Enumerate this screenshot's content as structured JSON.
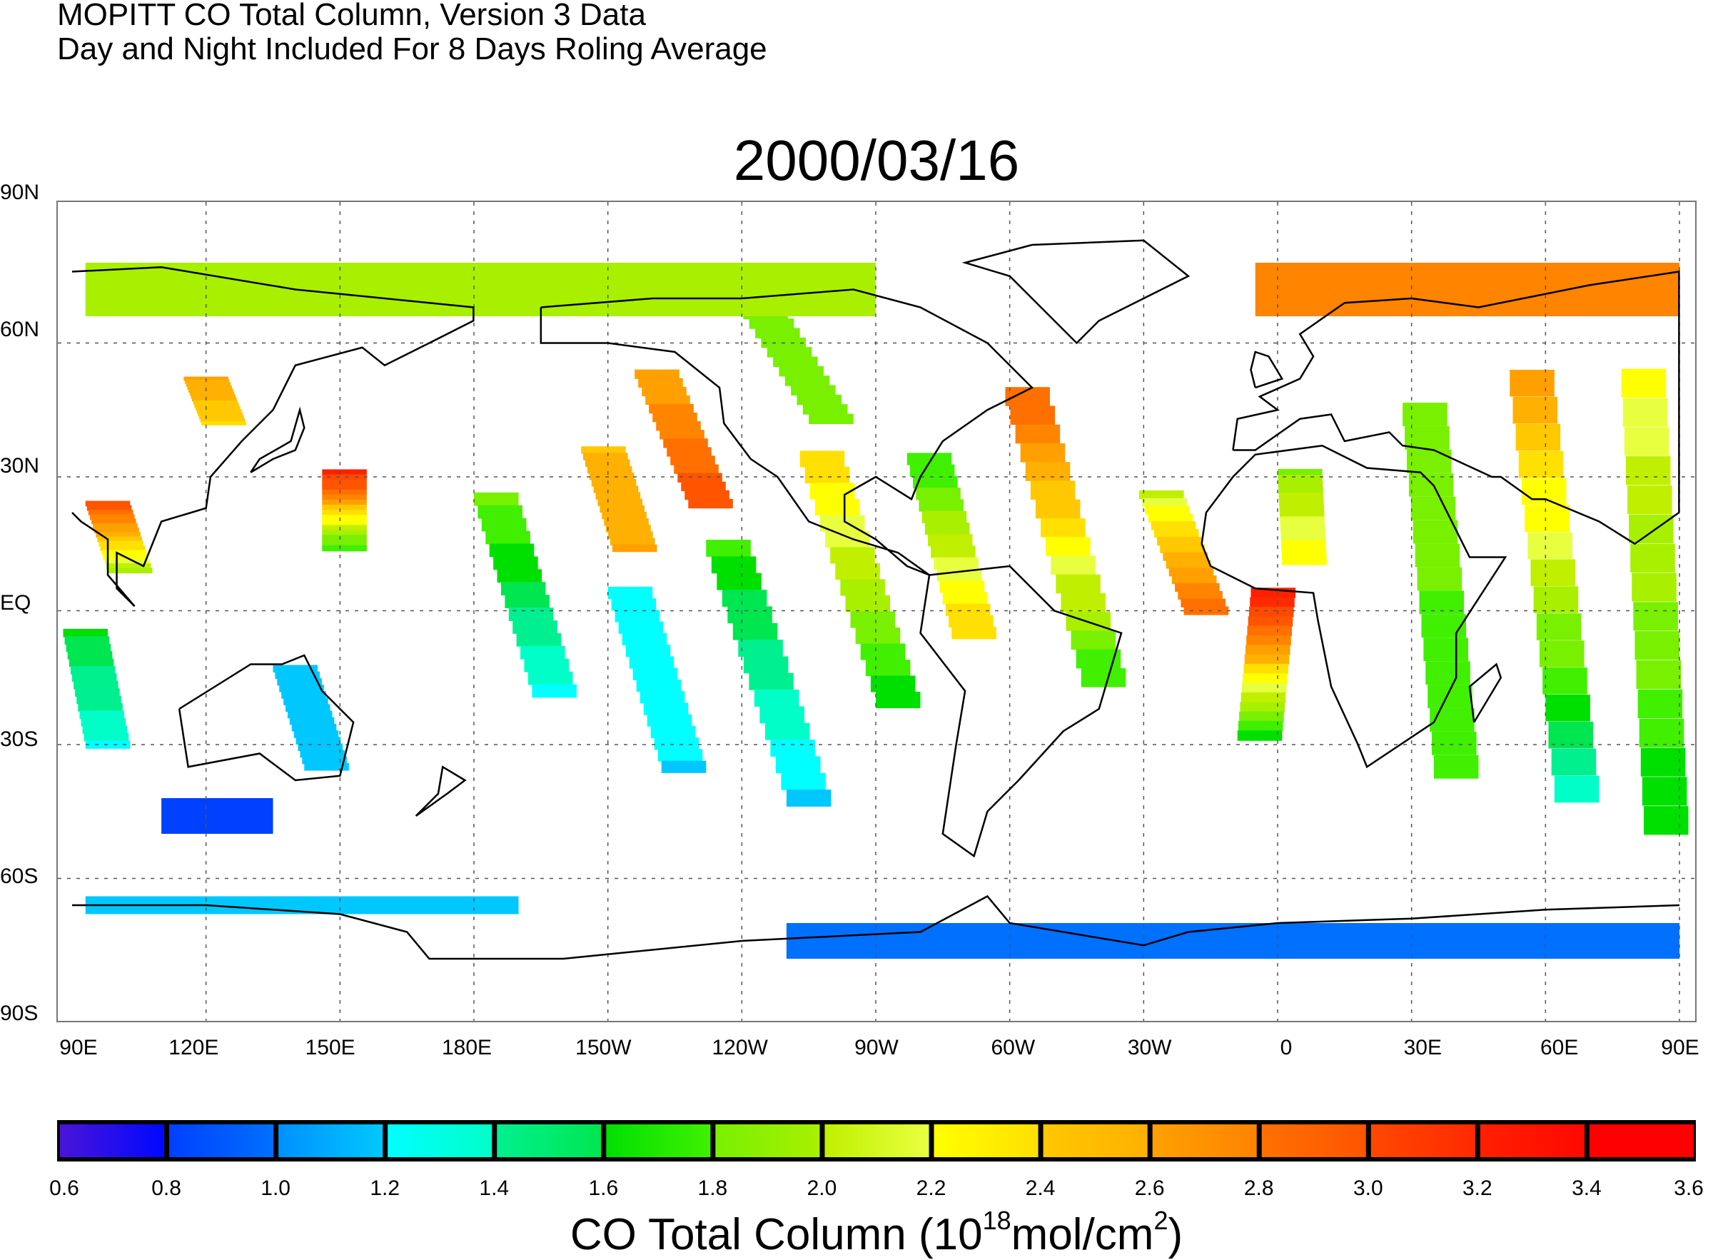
{
  "chart_data": {
    "type": "heatmap",
    "title": "MOPITT CO Total Column, Version 3 Data",
    "subtitle": "Day and Night Included For 8 Days Roling Average",
    "date": "2000/03/16",
    "lat_ticks": [
      "90N",
      "60N",
      "30N",
      "EQ",
      "30S",
      "60S",
      "90S"
    ],
    "lon_ticks": [
      "90E",
      "120E",
      "150E",
      "180E",
      "150W",
      "120W",
      "90W",
      "60W",
      "30W",
      "0",
      "30E",
      "60E",
      "90E"
    ],
    "xlim_lon": [
      90,
      450
    ],
    "ylim_lat": [
      -90,
      90
    ],
    "grid": true,
    "colorbar": {
      "ticks": [
        "0.6",
        "0.8",
        "1.0",
        "1.2",
        "1.4",
        "1.6",
        "1.8",
        "2.0",
        "2.2",
        "2.4",
        "2.6",
        "2.8",
        "3.0",
        "3.2",
        "3.4",
        "3.6"
      ],
      "range": [
        0.6,
        3.6
      ],
      "colors": [
        [
          "#4a14d8",
          "#0008ff"
        ],
        [
          "#0040ff",
          "#0070ff"
        ],
        [
          "#0090ff",
          "#00c8ff"
        ],
        [
          "#00ffff",
          "#00ffc8"
        ],
        [
          "#00f090",
          "#00e650"
        ],
        [
          "#00e000",
          "#40f000"
        ],
        [
          "#78f000",
          "#a8f000"
        ],
        [
          "#c0f000",
          "#e8ff40"
        ],
        [
          "#ffff00",
          "#ffe000"
        ],
        [
          "#ffc800",
          "#ffb000"
        ],
        [
          "#ffa000",
          "#ff8400"
        ],
        [
          "#ff7000",
          "#ff5400"
        ],
        [
          "#ff4800",
          "#ff2a00"
        ],
        [
          "#ff2000",
          "#ff0800"
        ],
        [
          "#ff0000",
          "#ff0000"
        ]
      ],
      "label_parts": {
        "prefix": "CO Total Column (10",
        "exp1": "18",
        "mid": "mol/cm",
        "exp2": "2",
        "suffix": ")"
      }
    },
    "swaths": [
      {
        "from": [
          185,
          25,
          1.8
        ],
        "to": [
          198,
          -18,
          1.3
        ]
      },
      {
        "from": [
          215,
          4,
          1.25
        ],
        "to": [
          227,
          -35,
          1.2
        ]
      },
      {
        "from": [
          237,
          14,
          1.7
        ],
        "to": [
          255,
          -42,
          1.2
        ]
      },
      {
        "from": [
          258,
          34,
          2.4
        ],
        "to": [
          275,
          -20,
          1.6
        ]
      },
      {
        "from": [
          282,
          34,
          1.7
        ],
        "to": [
          292,
          -5,
          2.4
        ]
      },
      {
        "from": [
          304,
          48,
          2.9
        ],
        "to": [
          321,
          -15,
          1.7
        ]
      },
      {
        "from": [
          334,
          26,
          2.1
        ],
        "to": [
          344,
          0,
          2.9
        ]
      },
      {
        "from": [
          359,
          4,
          3.3
        ],
        "to": [
          356,
          -28,
          1.6
        ]
      },
      {
        "from": [
          365,
          31,
          1.9
        ],
        "to": [
          366,
          11,
          2.3
        ]
      },
      {
        "from": [
          393,
          44,
          1.9
        ],
        "to": [
          400,
          -35,
          1.7
        ]
      },
      {
        "from": [
          417,
          51,
          2.6
        ],
        "to": [
          427,
          -40,
          1.4
        ]
      },
      {
        "from": [
          442,
          51,
          2.2
        ],
        "to": [
          447,
          -47,
          1.6
        ]
      },
      {
        "from": [
          221,
          53,
          2.6
        ],
        "to": [
          233,
          24,
          3.0
        ]
      },
      {
        "from": [
          209,
          36,
          2.5
        ],
        "to": [
          216,
          14,
          2.6
        ]
      },
      {
        "from": [
          240,
          75,
          1.8
        ],
        "to": [
          260,
          43,
          1.9
        ]
      },
      {
        "from": [
          98,
          24,
          3.0
        ],
        "to": [
          103,
          9,
          2.0
        ]
      },
      {
        "from": [
          93,
          -5,
          1.6
        ],
        "to": [
          98,
          -30,
          1.3
        ]
      },
      {
        "from": [
          140,
          -13,
          1.2
        ],
        "to": [
          147,
          -35,
          1.1
        ]
      },
      {
        "from": [
          151,
          31,
          3.2
        ],
        "to": [
          151,
          14,
          1.7
        ]
      },
      {
        "from": [
          120,
          52,
          2.6
        ],
        "to": [
          124,
          42,
          2.4
        ]
      }
    ],
    "bands": [
      {
        "lon": [
          93,
          270
        ],
        "lat": [
          78,
          66
        ],
        "value": 2.0
      },
      {
        "lon": [
          355,
          450
        ],
        "lat": [
          78,
          66
        ],
        "value": 2.7
      },
      {
        "lon": [
          93,
          190
        ],
        "lat": [
          -64,
          -68
        ],
        "value": 1.2
      },
      {
        "lon": [
          250,
          450
        ],
        "lat": [
          -70,
          -78
        ],
        "value": 0.9
      },
      {
        "lon": [
          110,
          135
        ],
        "lat": [
          -42,
          -50
        ],
        "value": 0.8
      }
    ]
  }
}
